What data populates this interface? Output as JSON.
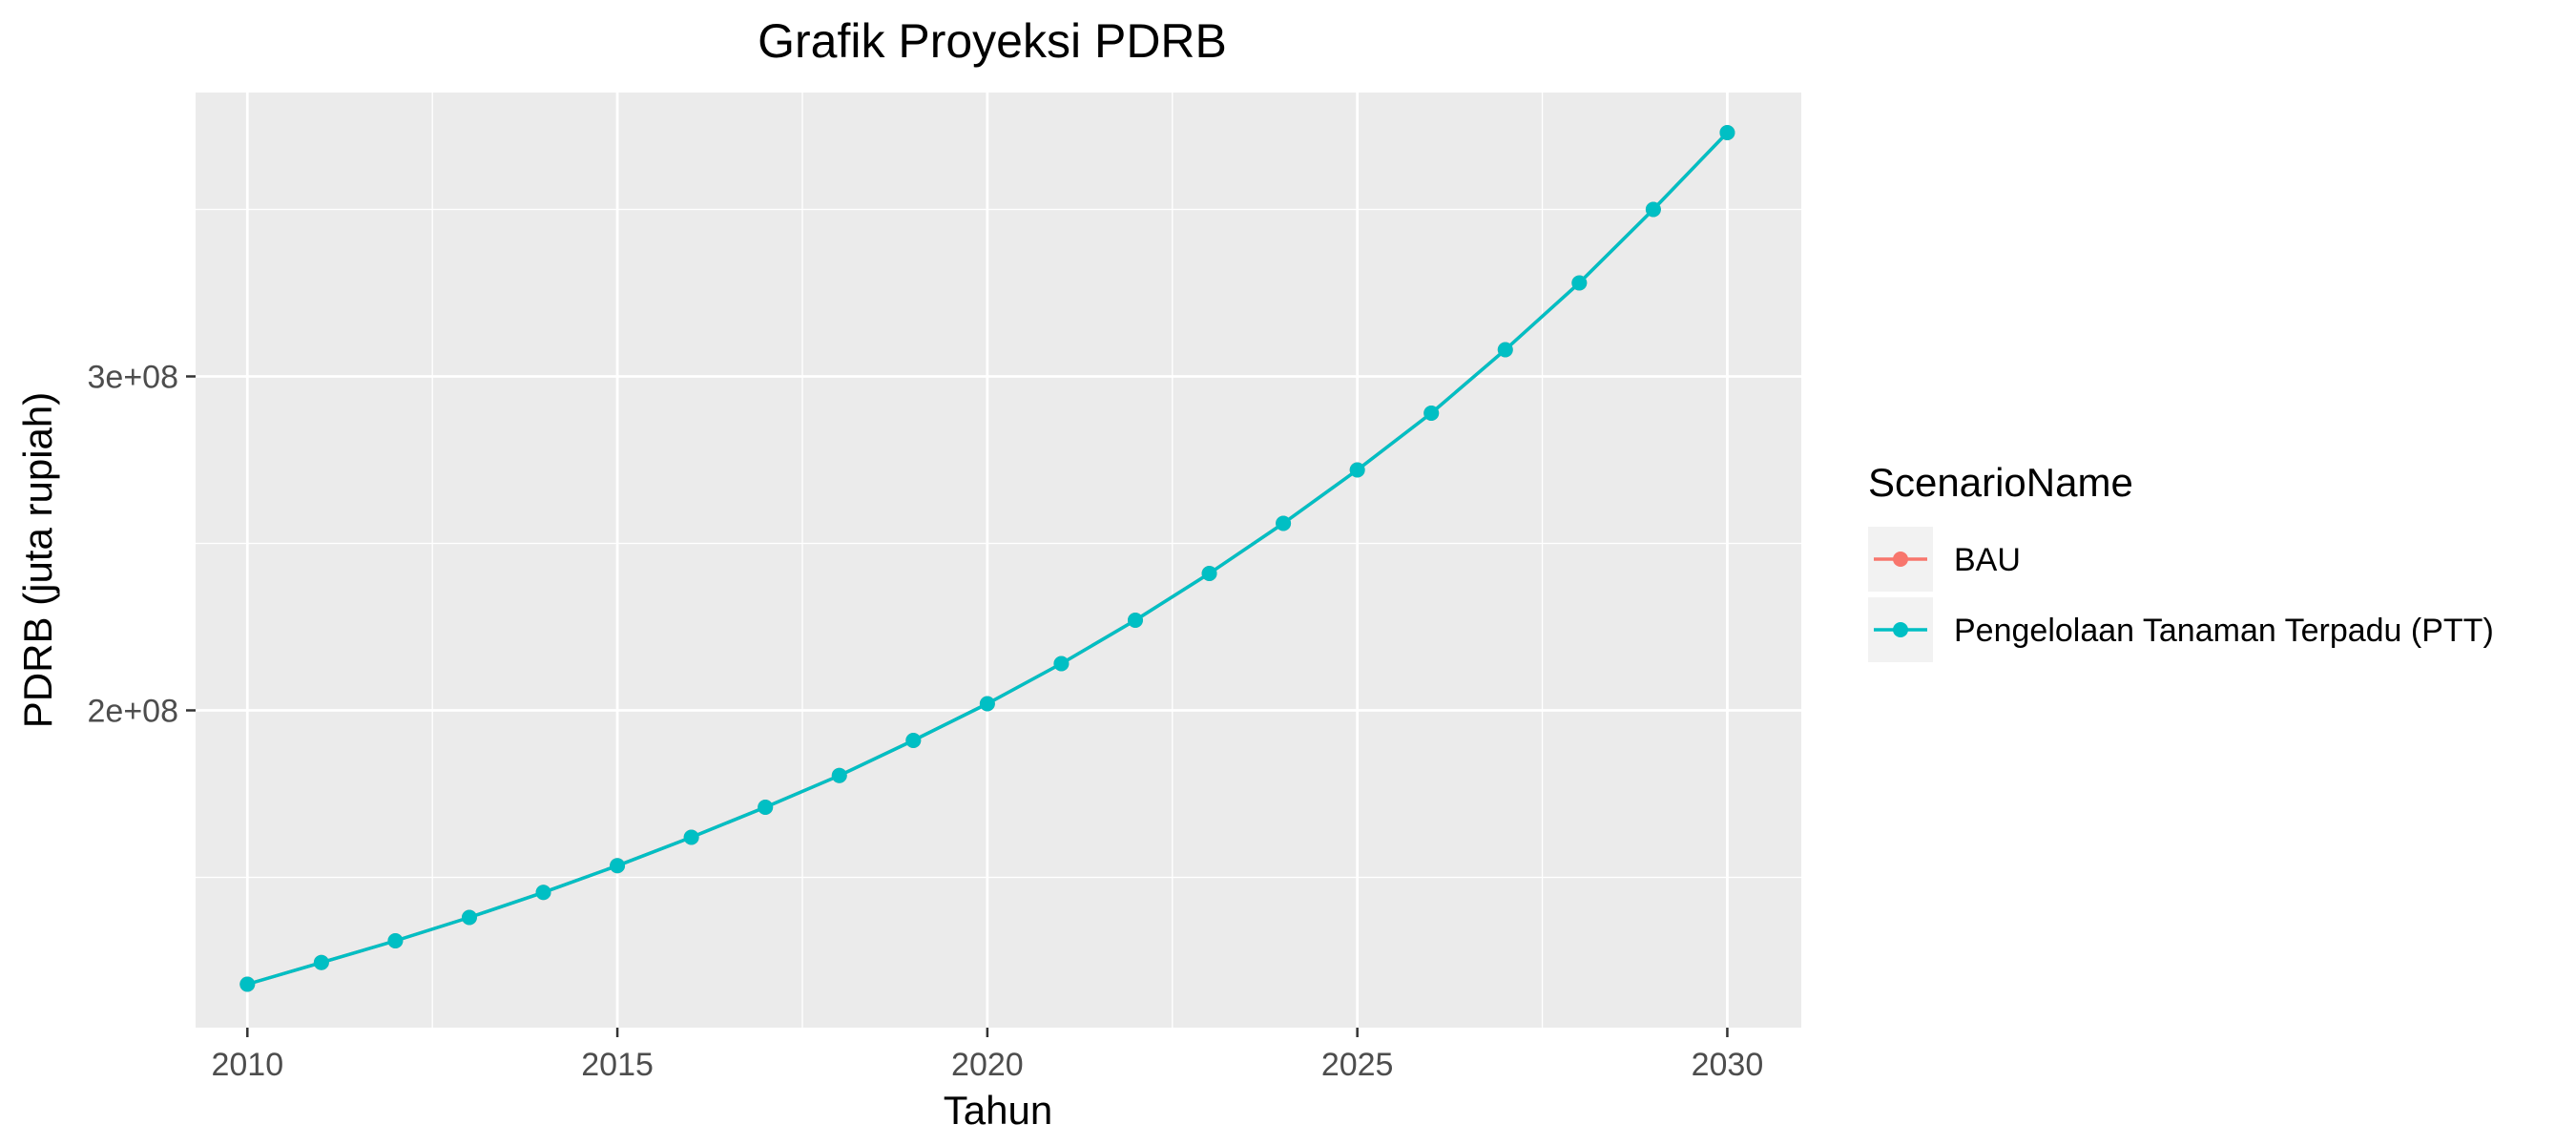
{
  "chart_data": {
    "type": "line",
    "title": "Grafik Proyeksi PDRB",
    "xlabel": "Tahun",
    "ylabel": "PDRB (juta rupiah)",
    "x": [
      2010,
      2011,
      2012,
      2013,
      2014,
      2015,
      2016,
      2017,
      2018,
      2019,
      2020,
      2021,
      2022,
      2023,
      2024,
      2025,
      2026,
      2027,
      2028,
      2029,
      2030
    ],
    "series": [
      {
        "name": "BAU",
        "color": "#F8766D",
        "values": [
          118000000,
          124500000,
          131000000,
          138000000,
          145500000,
          153500000,
          162000000,
          171000000,
          180500000,
          191000000,
          202000000,
          214000000,
          227000000,
          241000000,
          256000000,
          272000000,
          289000000,
          308000000,
          328000000,
          350000000,
          373000000
        ]
      },
      {
        "name": "Pengelolaan Tanaman Terpadu (PTT)",
        "color": "#00BFC4",
        "values": [
          118000000,
          124500000,
          131000000,
          138000000,
          145500000,
          153500000,
          162000000,
          171000000,
          180500000,
          191000000,
          202000000,
          214000000,
          227000000,
          241000000,
          256000000,
          272000000,
          289000000,
          308000000,
          328000000,
          350000000,
          373000000
        ]
      }
    ],
    "xlim": [
      2009.3,
      2031.0
    ],
    "ylim": [
      105000000,
      385000000
    ],
    "xticks": [
      2010,
      2015,
      2020,
      2025,
      2030
    ],
    "xtick_labels": [
      "2010",
      "2015",
      "2020",
      "2025",
      "2030"
    ],
    "yticks": [
      200000000,
      300000000
    ],
    "ytick_labels": [
      "2e+08",
      "3e+08"
    ],
    "legend": {
      "title": "ScenarioName",
      "position": "right",
      "entries": [
        "BAU",
        "Pengelolaan Tanaman Terpadu (PTT)"
      ]
    },
    "grid": true
  }
}
